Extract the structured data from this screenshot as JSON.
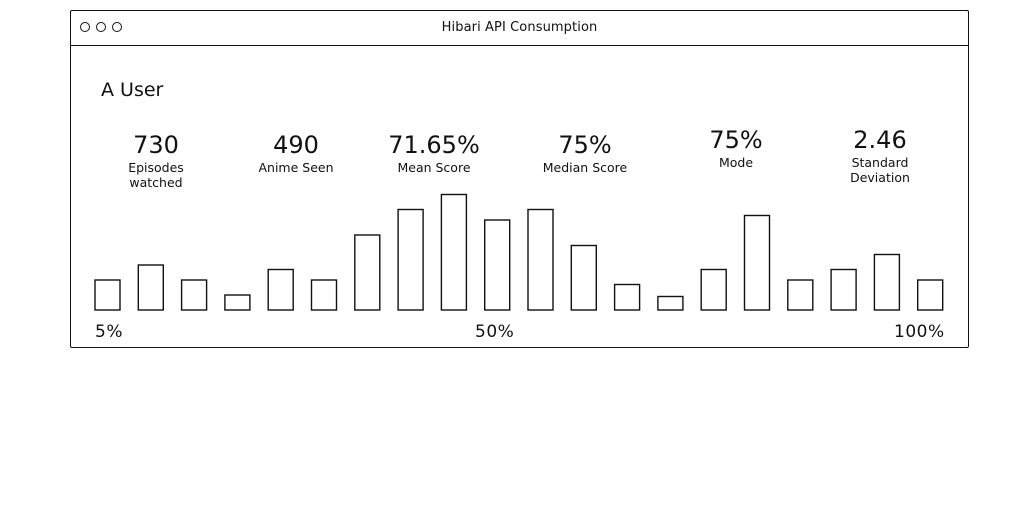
{
  "window": {
    "title": "Hibari API Consumption"
  },
  "user": {
    "name": "A User"
  },
  "stats": [
    {
      "value": "730",
      "label_lines": [
        "Episodes",
        "watched"
      ]
    },
    {
      "value": "490",
      "label_lines": [
        "Anime Seen"
      ]
    },
    {
      "value": "71.65%",
      "label_lines": [
        "Mean Score"
      ]
    },
    {
      "value": "75%",
      "label_lines": [
        "Median Score"
      ]
    },
    {
      "value": "75%",
      "label_lines": [
        "Mode"
      ]
    },
    {
      "value": "2.46",
      "label_lines": [
        "Standard",
        "Deviation"
      ]
    }
  ],
  "chart_data": {
    "type": "bar",
    "values": [
      2,
      3,
      2,
      1,
      2.7,
      2,
      5,
      6.7,
      7.7,
      6,
      6.7,
      4.3,
      1.7,
      0.9,
      2.7,
      6.3,
      2,
      2.7,
      3.7,
      2
    ],
    "x_tick_labels": [
      "5%",
      "50%",
      "100%"
    ]
  }
}
